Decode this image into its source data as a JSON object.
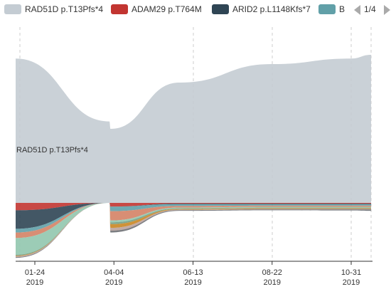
{
  "chart_data": {
    "type": "area",
    "subtype": "themeRiver",
    "legend": {
      "placement": "top",
      "entries": [
        "RAD51D p.T13Pfs*4",
        "ADAM29 p.T764M",
        "ARID2 p.L1148Kfs*7",
        "B"
      ],
      "page": "1/4"
    },
    "x_ticks": [
      {
        "date": "01-24",
        "year": "2019"
      },
      {
        "date": "04-04",
        "year": "2019"
      },
      {
        "date": "06-13",
        "year": "2019"
      },
      {
        "date": "08-22",
        "year": "2019"
      },
      {
        "date": "10-31",
        "year": "2019"
      }
    ],
    "grid": "vertical dashed",
    "stream_label": "RAD51D p.T13Pfs*4",
    "label_text": "RAD51D p.T13Pfs*4",
    "x_dates": [
      "2019-01-12",
      "2019-03-31",
      "2019-04-01",
      "2019-06-01",
      "2019-08-22",
      "2019-10-31",
      "2019-11-20"
    ],
    "series": [
      {
        "name": "RAD51D p.T13Pfs*4",
        "color": "#c4ccd3",
        "values": [
          0.78,
          0.44,
          0.4,
          0.65,
          0.75,
          0.78,
          0.8
        ]
      },
      {
        "name": "ADAM29 p.T764M",
        "color": "#c23531",
        "values": [
          0.04,
          0.0,
          0.02,
          0.004,
          0.004,
          0.004,
          0.004
        ]
      },
      {
        "name": "ARID2 p.L1148Kfs*7",
        "color": "#2f4554",
        "values": [
          0.1,
          0.0,
          0.0,
          0.003,
          0.003,
          0.003,
          0.003
        ]
      },
      {
        "name": "B",
        "color": "#61a0a8",
        "values": [
          0.02,
          0.0,
          0.025,
          0.01,
          0.008,
          0.008,
          0.008
        ]
      },
      {
        "color": "#d48265",
        "values": [
          0.03,
          0.0,
          0.05,
          0.008,
          0.006,
          0.006,
          0.006
        ]
      },
      {
        "color": "#91c7ae",
        "values": [
          0.09,
          0.0,
          0.01,
          0.005,
          0.005,
          0.005,
          0.005
        ]
      },
      {
        "color": "#749f83",
        "values": [
          0.005,
          0.0,
          0.01,
          0.003,
          0.003,
          0.003,
          0.003
        ]
      },
      {
        "color": "#ca8622",
        "values": [
          0.003,
          0.0,
          0.02,
          0.003,
          0.003,
          0.003,
          0.003
        ]
      },
      {
        "color": "#bda29a",
        "values": [
          0.005,
          0.0,
          0.015,
          0.003,
          0.003,
          0.003,
          0.003
        ]
      },
      {
        "color": "#6e7074",
        "values": [
          0.004,
          0.0,
          0.01,
          0.004,
          0.005,
          0.006,
          0.008
        ]
      }
    ]
  }
}
